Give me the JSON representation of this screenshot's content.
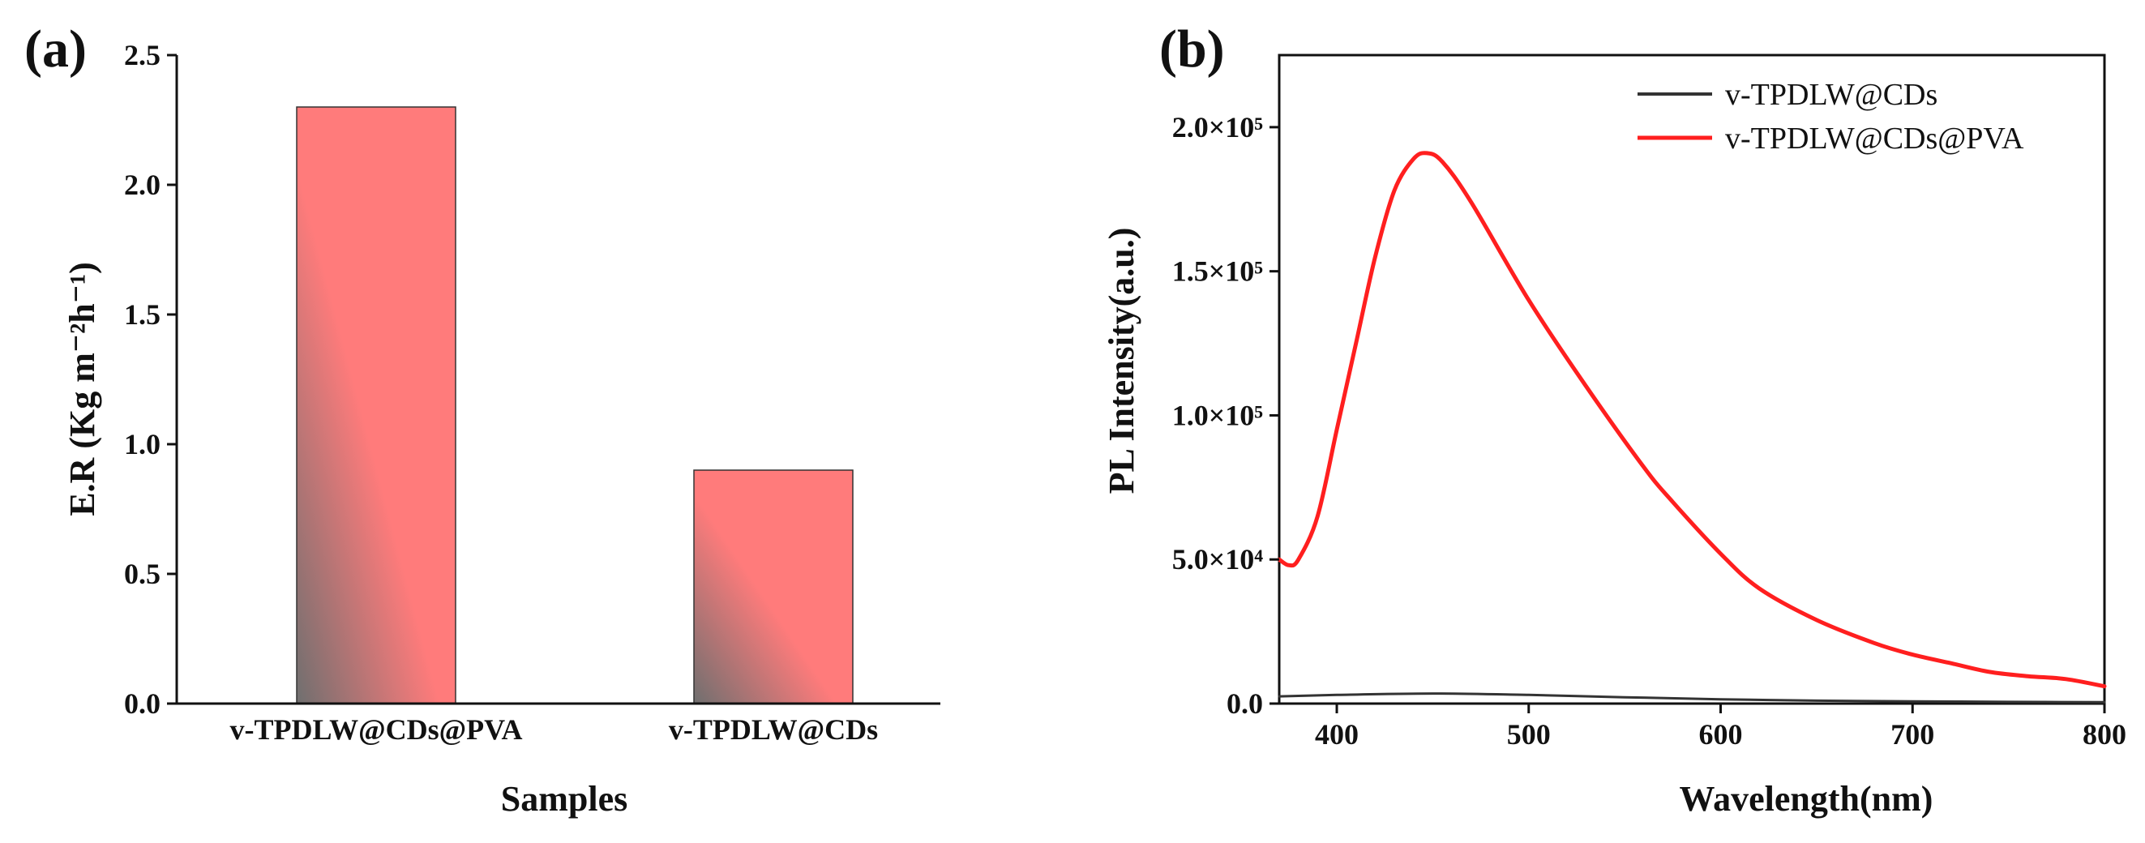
{
  "chart_data": [
    {
      "type": "bar",
      "panel_label": "(a)",
      "title": "",
      "categories": [
        "v-TPDLW@CDs@PVA",
        "v-TPDLW@CDs"
      ],
      "values": [
        2.3,
        0.9
      ],
      "xlabel": "Samples",
      "ylabel": "E.R (Kg m⁻²h⁻¹)",
      "ylim": [
        0,
        2.5
      ],
      "yticks": [
        0.0,
        0.5,
        1.0,
        1.5,
        2.0,
        2.5
      ],
      "ytick_labels": [
        "0.0",
        "0.5",
        "1.0",
        "1.5",
        "2.0",
        "2.5"
      ],
      "bar_color_start": "#6f6f6f",
      "bar_color_end": "#ff7b7b",
      "grid": false
    },
    {
      "type": "line",
      "panel_label": "(b)",
      "title": "",
      "xlabel": "Wavelength(nm)",
      "ylabel": "PL Intensity(a.u.)",
      "xlim": [
        370,
        800
      ],
      "ylim": [
        0,
        225000
      ],
      "xticks": [
        400,
        500,
        600,
        700,
        800
      ],
      "xtick_labels": [
        "400",
        "500",
        "600",
        "700",
        "800"
      ],
      "yticks": [
        0,
        50000,
        100000,
        150000,
        200000
      ],
      "ytick_labels": [
        "0.0",
        "5.0×10⁴",
        "1.0×10⁵",
        "1.5×10⁵",
        "2.0×10⁵"
      ],
      "legend_position": "top-right",
      "grid": false,
      "series": [
        {
          "name": "v-TPDLW@CDs",
          "color": "#333333",
          "x": [
            370,
            400,
            450,
            500,
            550,
            600,
            650,
            700,
            750,
            800
          ],
          "y": [
            2500,
            3000,
            3500,
            3000,
            2200,
            1500,
            1000,
            800,
            600,
            500
          ]
        },
        {
          "name": "v-TPDLW@CDs@PVA",
          "color": "#ff1f1f",
          "x": [
            370,
            375,
            380,
            390,
            400,
            410,
            420,
            430,
            440,
            447,
            455,
            470,
            500,
            530,
            560,
            575,
            600,
            620,
            650,
            680,
            700,
            720,
            740,
            760,
            780,
            800
          ],
          "y": [
            50000,
            48000,
            50000,
            65000,
            95000,
            125000,
            155000,
            178000,
            189000,
            191000,
            188000,
            174000,
            140000,
            110000,
            82000,
            70000,
            52000,
            40000,
            29000,
            21000,
            17000,
            14000,
            11000,
            9500,
            8500,
            6000
          ]
        }
      ]
    }
  ]
}
